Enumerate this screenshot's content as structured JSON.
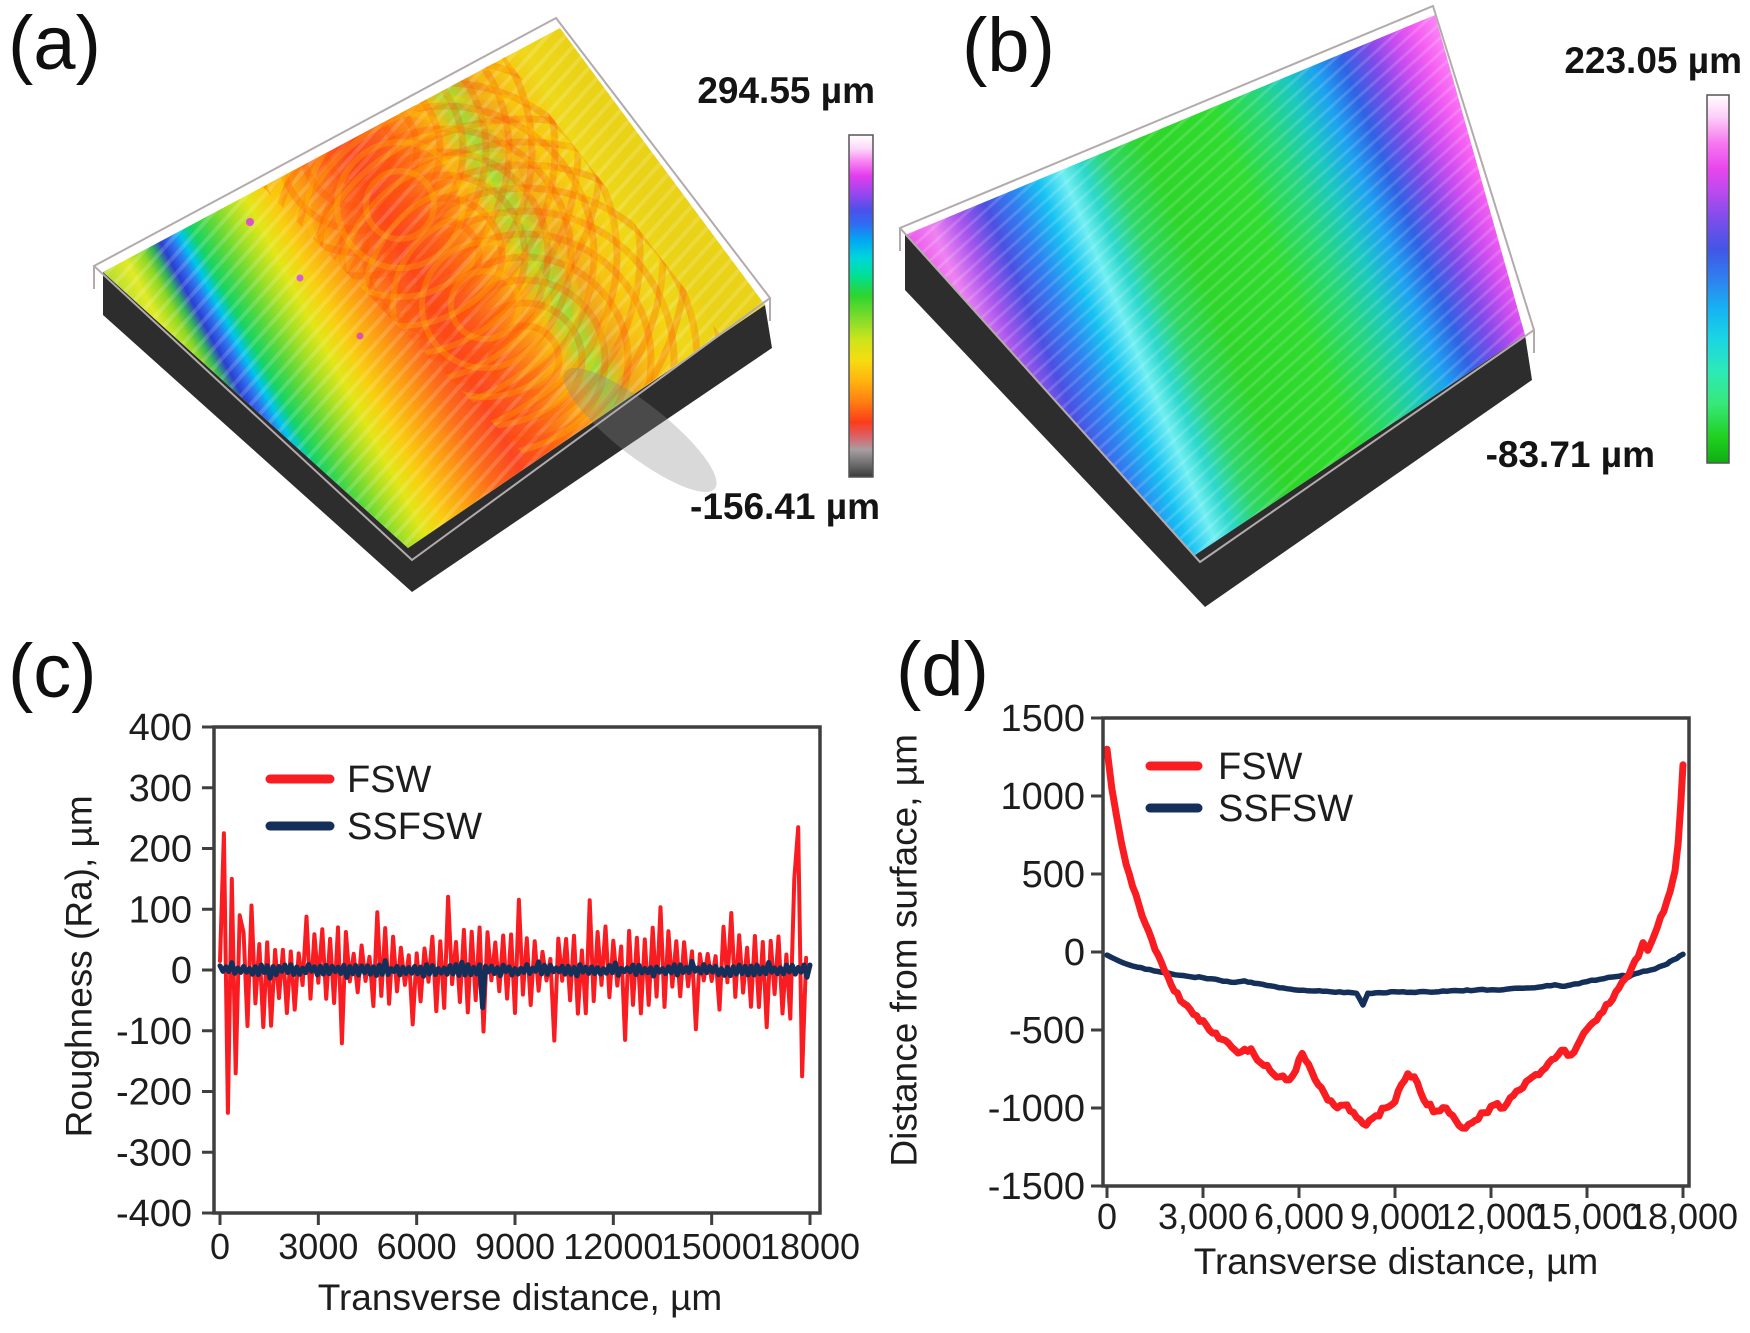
{
  "figure": {
    "caption_note": "",
    "panels": {
      "a": {
        "label": "(a)",
        "scale_max": "294.55 µm",
        "scale_min": "-156.41 µm",
        "surface_type": "3D optical profilometry of FSW weld surface (rough, arc ripples)",
        "surface_colors": [
          [
            "0.00",
            "#b5dc35"
          ],
          [
            "0.05",
            "#e0ea26"
          ],
          [
            "0.085",
            "#8cd824"
          ],
          [
            "0.105",
            "#35b45a"
          ],
          [
            "0.125",
            "#2b3fd4"
          ],
          [
            "0.145",
            "#2f72ee"
          ],
          [
            "0.165",
            "#00c4ec"
          ],
          [
            "0.19",
            "#16d464"
          ],
          [
            "0.23",
            "#5cd83a"
          ],
          [
            "0.27",
            "#a5e026"
          ],
          [
            "0.31",
            "#e2e618"
          ],
          [
            "0.35",
            "#f8cf10"
          ],
          [
            "0.41",
            "#fc9e12"
          ],
          [
            "0.47",
            "#fc6a1a"
          ],
          [
            "0.53",
            "#fb4620"
          ],
          [
            "0.59",
            "#fc5c1c"
          ],
          [
            "0.65",
            "#fc8816"
          ],
          [
            "0.70",
            "#f8b414"
          ],
          [
            "0.75",
            "#9fdc34"
          ],
          [
            "0.80",
            "#f0a81c"
          ],
          [
            "0.86",
            "#f6c614"
          ],
          [
            "0.92",
            "#eed81a"
          ],
          [
            "1.00",
            "#ead216"
          ]
        ],
        "colorbar_colors": [
          [
            "0.00",
            "#ffffff"
          ],
          [
            "0.04",
            "#fdd8f8"
          ],
          [
            "0.08",
            "#f87ef2"
          ],
          [
            "0.12",
            "#e23cee"
          ],
          [
            "0.17",
            "#9a46ee"
          ],
          [
            "0.22",
            "#4b50ea"
          ],
          [
            "0.26",
            "#2f6cf2"
          ],
          [
            "0.31",
            "#00aaf2"
          ],
          [
            "0.36",
            "#00d6da"
          ],
          [
            "0.41",
            "#00e096"
          ],
          [
            "0.47",
            "#2ed42e"
          ],
          [
            "0.54",
            "#86dc2a"
          ],
          [
            "0.60",
            "#cfe41c"
          ],
          [
            "0.66",
            "#f6dc10"
          ],
          [
            "0.72",
            "#ffb30e"
          ],
          [
            "0.78",
            "#ff7e12"
          ],
          [
            "0.84",
            "#fb3c1a"
          ],
          [
            "0.88",
            "#dd5f66"
          ],
          [
            "0.92",
            "#a89ea0"
          ],
          [
            "0.96",
            "#707070"
          ],
          [
            "1.00",
            "#3a3a3a"
          ]
        ]
      },
      "b": {
        "label": "(b)",
        "scale_max": "223.05 µm",
        "scale_min": "-83.71 µm",
        "surface_type": "3D optical profilometry of SSFSW weld surface (smooth, banded)",
        "surface_colors": [
          [
            "0.00",
            "#ee55ea"
          ],
          [
            "0.05",
            "#ef82f2"
          ],
          [
            "0.10",
            "#a655ec"
          ],
          [
            "0.15",
            "#4b50e2"
          ],
          [
            "0.20",
            "#2f80f0"
          ],
          [
            "0.25",
            "#16c2f2"
          ],
          [
            "0.295",
            "#70eef2"
          ],
          [
            "0.33",
            "#2cd8cc"
          ],
          [
            "0.38",
            "#2ed766"
          ],
          [
            "0.45",
            "#2ed629"
          ],
          [
            "0.58",
            "#2fdc2f"
          ],
          [
            "0.66",
            "#26d77a"
          ],
          [
            "0.72",
            "#1ac8c0"
          ],
          [
            "0.77",
            "#1da2f0"
          ],
          [
            "0.82",
            "#2f62e4"
          ],
          [
            "0.87",
            "#7c4ae8"
          ],
          [
            "0.92",
            "#cc4cf0"
          ],
          [
            "0.96",
            "#f55ef2"
          ],
          [
            "1.00",
            "#fb86f6"
          ]
        ],
        "colorbar_colors": [
          [
            "0.00",
            "#ffffff"
          ],
          [
            "0.06",
            "#fccef8"
          ],
          [
            "0.13",
            "#f678f0"
          ],
          [
            "0.20",
            "#e846ec"
          ],
          [
            "0.27",
            "#b44aee"
          ],
          [
            "0.34",
            "#7a4eea"
          ],
          [
            "0.42",
            "#4156e6"
          ],
          [
            "0.50",
            "#2f80f0"
          ],
          [
            "0.58",
            "#16b2f2"
          ],
          [
            "0.66",
            "#1ad4e4"
          ],
          [
            "0.75",
            "#2ceab6"
          ],
          [
            "0.84",
            "#38e878"
          ],
          [
            "0.93",
            "#20d020"
          ],
          [
            "1.00",
            "#0fae12"
          ]
        ]
      },
      "c": {
        "label": "(c)"
      },
      "d": {
        "label": "(d)"
      }
    }
  },
  "colors": {
    "fsw_red": "#f91d22",
    "ssfsw_navy": "#14305a",
    "axis": "#3f3f3f",
    "text": "#1d1d1d",
    "wireframe": "#b3abab",
    "block_base": "#2d2d2d"
  },
  "chart_data": [
    {
      "id": "chart-c",
      "type": "line",
      "title": "",
      "xlabel": "Transverse distance, µm",
      "ylabel": "Roughness (Ra), µm",
      "xlim": [
        0,
        18000
      ],
      "ylim": [
        -400,
        400
      ],
      "grid": false,
      "legend_position": "top-left-inside",
      "x_ticks": [
        [
          0,
          "0"
        ],
        [
          3000,
          "3000"
        ],
        [
          6000,
          "6000"
        ],
        [
          9000,
          "9000"
        ],
        [
          12000,
          "12000"
        ],
        [
          15000,
          "15000"
        ],
        [
          18000,
          "18000"
        ]
      ],
      "y_ticks": [
        [
          400,
          "400"
        ],
        [
          300,
          "300"
        ],
        [
          200,
          "200"
        ],
        [
          100,
          "100"
        ],
        [
          0,
          "0"
        ],
        [
          -100,
          "-100"
        ],
        [
          -200,
          "-200"
        ],
        [
          -300,
          "-300"
        ],
        [
          -400,
          "-400"
        ]
      ],
      "legend": [
        {
          "label": "FSW",
          "color_key": "fsw_red"
        },
        {
          "label": "SSFSW",
          "color_key": "ssfsw_navy"
        }
      ],
      "series": [
        {
          "name": "FSW",
          "color_key": "fsw_red",
          "width": 4,
          "summary": "High-frequency roughness oscillating about 0; typical ±40–110 µm; edge spikes to +225/−235 µm at x≈0 and +230/−180 µm at x≈18000.",
          "synth": {
            "kind": "noise",
            "seed": 7,
            "n": 150,
            "base_amp": 48,
            "peak_amp": 104,
            "peak_period": 9,
            "edge_boost": 1.5,
            "start_spikes": [
              15,
              225,
              -235,
              150,
              -170,
              90
            ],
            "end_spikes": [
              -80,
              150,
              235,
              -175,
              20
            ]
          }
        },
        {
          "name": "SSFSW",
          "color_key": "ssfsw_navy",
          "width": 5,
          "summary": "Near-flat profile about 0, roughly ±10 µm, with one dip to about −62 µm near x≈8000.",
          "synth": {
            "kind": "noise",
            "seed": 3,
            "n": 200,
            "base_amp": 6,
            "peak_amp": 13,
            "peak_period": 13,
            "dip": {
              "x": 8000,
              "y": -62
            }
          }
        }
      ]
    },
    {
      "id": "chart-d",
      "type": "line",
      "title": "",
      "xlabel": "Transverse distance, µm",
      "ylabel": "Distance from surface, µm",
      "xlim": [
        0,
        18000
      ],
      "ylim": [
        -1500,
        1500
      ],
      "grid": false,
      "legend_position": "top-left-inside",
      "x_ticks": [
        [
          0,
          "0"
        ],
        [
          3000,
          "3,000"
        ],
        [
          6000,
          "6,000"
        ],
        [
          9000,
          "9,000"
        ],
        [
          12000,
          "12,000"
        ],
        [
          15000,
          "15,000"
        ],
        [
          18000,
          "18,000"
        ]
      ],
      "y_ticks": [
        [
          1500,
          "1500"
        ],
        [
          1000,
          "1000"
        ],
        [
          500,
          "500"
        ],
        [
          0,
          "0"
        ],
        [
          -500,
          "-500"
        ],
        [
          -1000,
          "-1000"
        ],
        [
          -1500,
          "-1500"
        ]
      ],
      "legend": [
        {
          "label": "FSW",
          "color_key": "fsw_red"
        },
        {
          "label": "SSFSW",
          "color_key": "ssfsw_navy"
        }
      ],
      "series": [
        {
          "name": "SSFSW",
          "color_key": "ssfsw_navy",
          "width": 5.5,
          "jitter": 4,
          "seed": 21,
          "summary": "Shallow smooth concave profile: ~−20 µm at edges, ~−250 µm at center, small dip to −340 µm near x≈8000.",
          "points": [
            [
              0,
              -20
            ],
            [
              400,
              -60
            ],
            [
              800,
              -90
            ],
            [
              1200,
              -110
            ],
            [
              1600,
              -125
            ],
            [
              2000,
              -140
            ],
            [
              2500,
              -155
            ],
            [
              3000,
              -165
            ],
            [
              3500,
              -180
            ],
            [
              4000,
              -195
            ],
            [
              4300,
              -185
            ],
            [
              4600,
              -200
            ],
            [
              5000,
              -215
            ],
            [
              5500,
              -230
            ],
            [
              6000,
              -245
            ],
            [
              6500,
              -250
            ],
            [
              7000,
              -255
            ],
            [
              7400,
              -260
            ],
            [
              7800,
              -265
            ],
            [
              8000,
              -340
            ],
            [
              8150,
              -265
            ],
            [
              8500,
              -260
            ],
            [
              9000,
              -255
            ],
            [
              9500,
              -258
            ],
            [
              10000,
              -255
            ],
            [
              10500,
              -250
            ],
            [
              11000,
              -248
            ],
            [
              11500,
              -245
            ],
            [
              12000,
              -242
            ],
            [
              12500,
              -238
            ],
            [
              13000,
              -232
            ],
            [
              13500,
              -225
            ],
            [
              14000,
              -210
            ],
            [
              14300,
              -220
            ],
            [
              14600,
              -205
            ],
            [
              15000,
              -190
            ],
            [
              15400,
              -175
            ],
            [
              15800,
              -160
            ],
            [
              16100,
              -150
            ],
            [
              16300,
              -160
            ],
            [
              16500,
              -140
            ],
            [
              17000,
              -115
            ],
            [
              17400,
              -85
            ],
            [
              17700,
              -50
            ],
            [
              18000,
              -15
            ]
          ]
        },
        {
          "name": "FSW",
          "color_key": "fsw_red",
          "width": 7,
          "jitter": 18,
          "seed": 5,
          "summary": "Deep concave profile: +1300 µm at x=0, bottom ~−1150 µm near x≈8000–11500, back to +1200 µm at x=18000.",
          "points": [
            [
              0,
              1300
            ],
            [
              150,
              1050
            ],
            [
              300,
              870
            ],
            [
              450,
              700
            ],
            [
              600,
              560
            ],
            [
              800,
              420
            ],
            [
              1000,
              300
            ],
            [
              1200,
              180
            ],
            [
              1400,
              80
            ],
            [
              1600,
              -20
            ],
            [
              1800,
              -120
            ],
            [
              2100,
              -250
            ],
            [
              2400,
              -330
            ],
            [
              2700,
              -400
            ],
            [
              3000,
              -440
            ],
            [
              3300,
              -520
            ],
            [
              3600,
              -560
            ],
            [
              3900,
              -610
            ],
            [
              4200,
              -640
            ],
            [
              4500,
              -620
            ],
            [
              4800,
              -710
            ],
            [
              5100,
              -760
            ],
            [
              5400,
              -800
            ],
            [
              5700,
              -820
            ],
            [
              5900,
              -760
            ],
            [
              6100,
              -650
            ],
            [
              6300,
              -720
            ],
            [
              6600,
              -850
            ],
            [
              6900,
              -950
            ],
            [
              7200,
              -1000
            ],
            [
              7500,
              -980
            ],
            [
              7800,
              -1060
            ],
            [
              8100,
              -1110
            ],
            [
              8400,
              -1050
            ],
            [
              8700,
              -1000
            ],
            [
              9000,
              -960
            ],
            [
              9200,
              -850
            ],
            [
              9400,
              -780
            ],
            [
              9600,
              -800
            ],
            [
              9800,
              -900
            ],
            [
              10000,
              -980
            ],
            [
              10300,
              -1020
            ],
            [
              10600,
              -1000
            ],
            [
              10900,
              -1080
            ],
            [
              11200,
              -1130
            ],
            [
              11500,
              -1080
            ],
            [
              11800,
              -1030
            ],
            [
              12100,
              -980
            ],
            [
              12400,
              -1000
            ],
            [
              12700,
              -920
            ],
            [
              13000,
              -870
            ],
            [
              13300,
              -800
            ],
            [
              13600,
              -760
            ],
            [
              13900,
              -690
            ],
            [
              14200,
              -630
            ],
            [
              14500,
              -660
            ],
            [
              14800,
              -560
            ],
            [
              15100,
              -470
            ],
            [
              15400,
              -400
            ],
            [
              15700,
              -330
            ],
            [
              16000,
              -230
            ],
            [
              16200,
              -170
            ],
            [
              16400,
              -100
            ],
            [
              16600,
              -30
            ],
            [
              16750,
              60
            ],
            [
              16900,
              10
            ],
            [
              17050,
              80
            ],
            [
              17200,
              160
            ],
            [
              17400,
              260
            ],
            [
              17600,
              390
            ],
            [
              17750,
              520
            ],
            [
              17850,
              700
            ],
            [
              17930,
              950
            ],
            [
              18000,
              1200
            ]
          ]
        }
      ]
    }
  ]
}
